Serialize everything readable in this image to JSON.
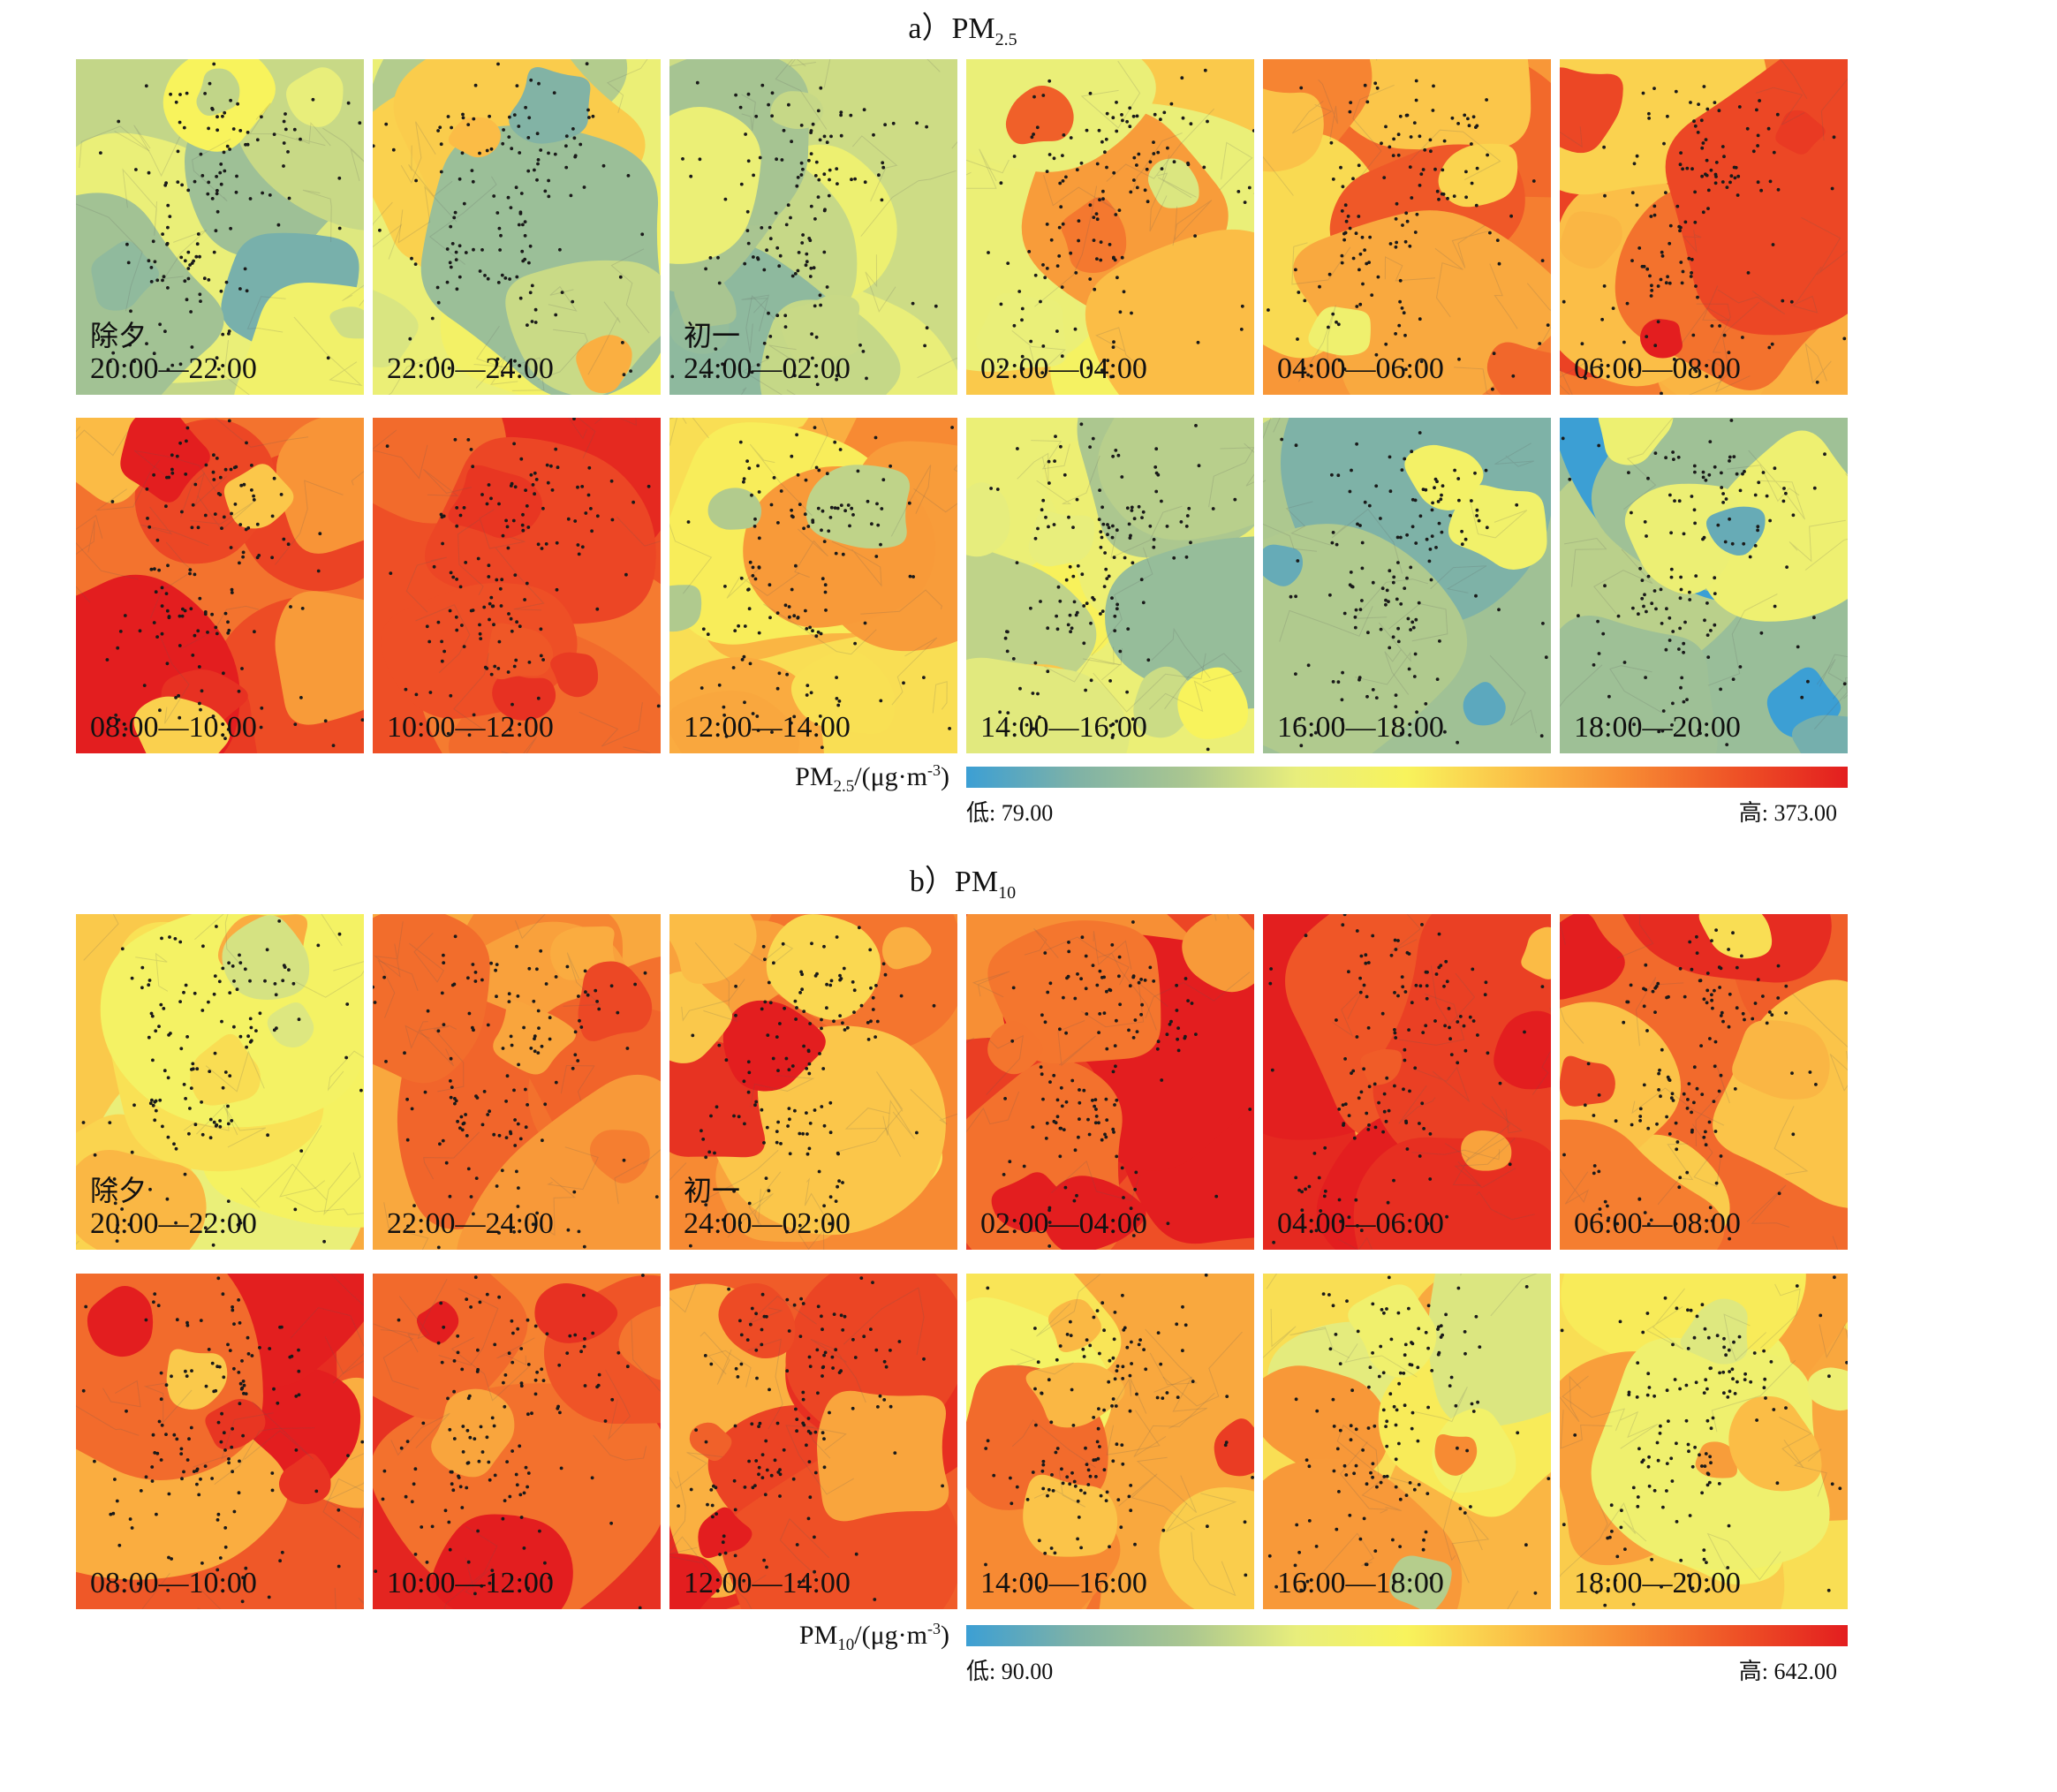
{
  "sections": [
    {
      "id": "pm25",
      "title_prefix": "a）PM",
      "title_sub": "2.5",
      "panels": [
        {
          "day": "除夕",
          "time": "20:00—22:00",
          "level": 0.3
        },
        {
          "day": "",
          "time": "22:00—24:00",
          "level": 0.4
        },
        {
          "day": "初一",
          "time": "24:00—02:00",
          "level": 0.32
        },
        {
          "day": "",
          "time": "02:00—04:00",
          "level": 0.6
        },
        {
          "day": "",
          "time": "04:00—06:00",
          "level": 0.72
        },
        {
          "day": "",
          "time": "06:00—08:00",
          "level": 0.78
        },
        {
          "day": "",
          "time": "08:00—10:00",
          "level": 0.8
        },
        {
          "day": "",
          "time": "10:00—12:00",
          "level": 0.88
        },
        {
          "day": "",
          "time": "12:00—14:00",
          "level": 0.55
        },
        {
          "day": "",
          "time": "14:00—16:00",
          "level": 0.4
        },
        {
          "day": "",
          "time": "16:00—18:00",
          "level": 0.22
        },
        {
          "day": "",
          "time": "18:00—20:00",
          "level": 0.2
        }
      ],
      "legend": {
        "name": "PM",
        "name_sub": "2.5",
        "unit": "/(μg·m",
        "unit_sup": "-3",
        "unit_end": ")",
        "low": "低: 79.00",
        "high": "高: 373.00"
      }
    },
    {
      "id": "pm10",
      "title_prefix": "b）PM",
      "title_sub": "10",
      "panels": [
        {
          "day": "除夕",
          "time": "20:00—22:00",
          "level": 0.6
        },
        {
          "day": "",
          "time": "22:00—24:00",
          "level": 0.68
        },
        {
          "day": "初一",
          "time": "24:00—02:00",
          "level": 0.75
        },
        {
          "day": "",
          "time": "02:00—04:00",
          "level": 0.88
        },
        {
          "day": "",
          "time": "04:00—06:00",
          "level": 0.88
        },
        {
          "day": "",
          "time": "06:00—08:00",
          "level": 0.82
        },
        {
          "day": "",
          "time": "08:00—10:00",
          "level": 0.86
        },
        {
          "day": "",
          "time": "10:00—12:00",
          "level": 0.95
        },
        {
          "day": "",
          "time": "12:00—14:00",
          "level": 0.85
        },
        {
          "day": "",
          "time": "14:00—16:00",
          "level": 0.68
        },
        {
          "day": "",
          "time": "16:00—18:00",
          "level": 0.55
        },
        {
          "day": "",
          "time": "18:00—20:00",
          "level": 0.55
        }
      ],
      "legend": {
        "name": "PM",
        "name_sub": "10",
        "unit": "/(μg·m",
        "unit_sup": "-3",
        "unit_end": ")",
        "low": "低: 90.00",
        "high": "高: 642.00"
      }
    }
  ],
  "colors": {
    "ramp": [
      "#3c9fd4",
      "#7fb2a6",
      "#aac690",
      "#e8ee7c",
      "#f8f35c",
      "#fbbf47",
      "#f78a33",
      "#ee5126",
      "#e31e1f"
    ]
  }
}
